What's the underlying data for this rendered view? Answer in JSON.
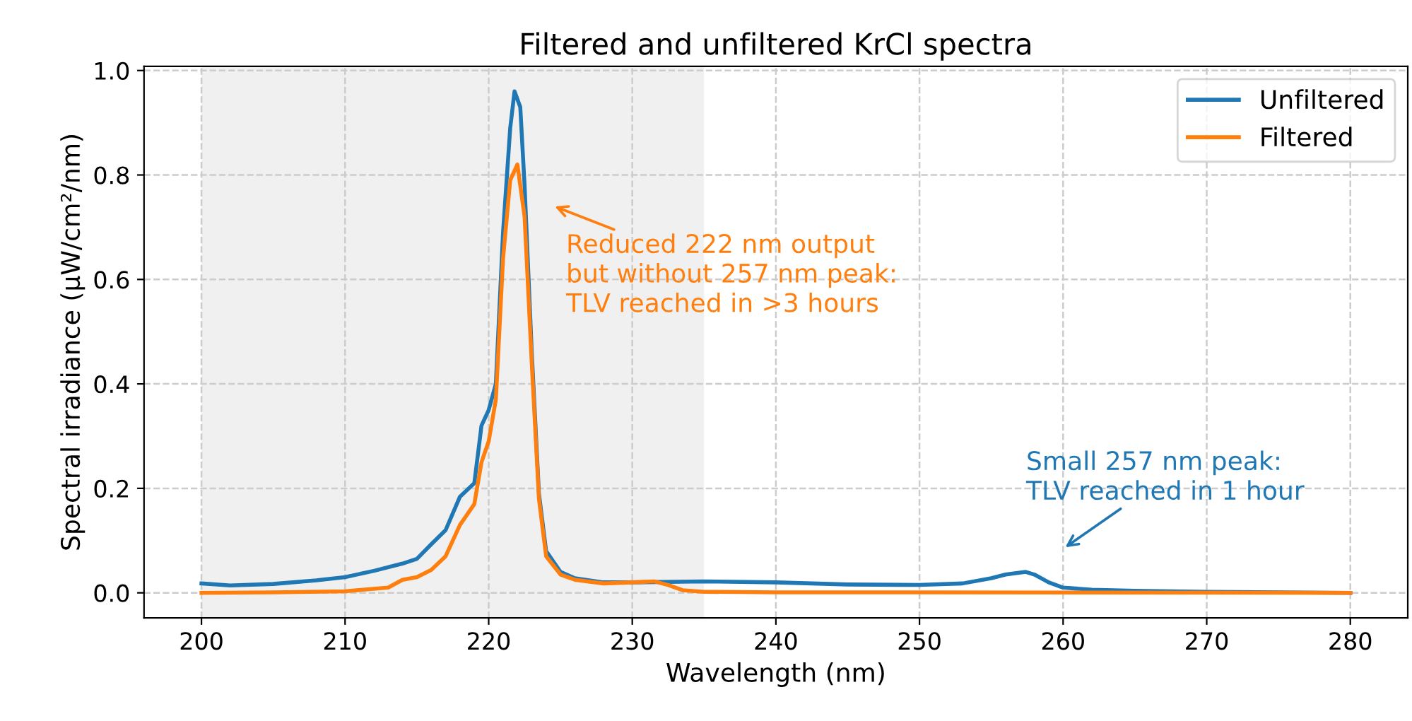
{
  "chart_data": {
    "type": "line",
    "title": "Filtered and unfiltered KrCl spectra",
    "xlabel": "Wavelength (nm)",
    "ylabel": "Spectral irradiance (µW/cm²/nm)",
    "xlim": [
      196,
      284
    ],
    "ylim": [
      -0.048,
      1.008
    ],
    "xticks": [
      200,
      210,
      220,
      230,
      240,
      250,
      260,
      270,
      280
    ],
    "yticks": [
      {
        "value": 0,
        "label": "0.0"
      },
      0.2,
      0.4,
      0.6,
      0.8,
      {
        "value": 1,
        "label": "1.0"
      }
    ],
    "grid": true,
    "legend": "top right",
    "line_style": "solid",
    "marker": "none",
    "bands": [
      {
        "axis": "x",
        "from": 200,
        "to": 235,
        "color": "#f0f0f0"
      }
    ],
    "series": [
      {
        "name": "Unfiltered",
        "color": "#1f77b4",
        "x": [
          200,
          202,
          205,
          208,
          210,
          212,
          214,
          215,
          216,
          217,
          218,
          219,
          219.5,
          220,
          220.5,
          221,
          221.5,
          221.8,
          222.2,
          222.5,
          223,
          223.5,
          224,
          225,
          226,
          228,
          230,
          235,
          240,
          245,
          250,
          253,
          255,
          256,
          257.4,
          258,
          259,
          260,
          262,
          265,
          270,
          280
        ],
        "values": [
          0.018,
          0.014,
          0.017,
          0.024,
          0.03,
          0.042,
          0.056,
          0.065,
          0.093,
          0.12,
          0.184,
          0.21,
          0.32,
          0.35,
          0.4,
          0.69,
          0.89,
          0.96,
          0.93,
          0.78,
          0.46,
          0.19,
          0.08,
          0.04,
          0.028,
          0.02,
          0.02,
          0.022,
          0.02,
          0.016,
          0.015,
          0.018,
          0.028,
          0.035,
          0.04,
          0.035,
          0.02,
          0.01,
          0.006,
          0.004,
          0.002,
          0.0
        ]
      },
      {
        "name": "Filtered",
        "color": "#ff7f0e",
        "x": [
          200,
          205,
          210,
          213,
          214,
          215,
          216,
          217,
          218,
          219,
          219.5,
          220,
          220.5,
          221,
          221.5,
          222,
          222.5,
          223,
          223.5,
          224,
          225,
          226,
          228,
          230,
          231.5,
          232.5,
          233.5,
          235,
          240,
          280
        ],
        "values": [
          0.0,
          0.001,
          0.003,
          0.01,
          0.025,
          0.03,
          0.044,
          0.07,
          0.13,
          0.17,
          0.25,
          0.29,
          0.37,
          0.64,
          0.79,
          0.82,
          0.72,
          0.44,
          0.18,
          0.07,
          0.035,
          0.025,
          0.018,
          0.02,
          0.022,
          0.015,
          0.005,
          0.002,
          0.001,
          0.0
        ]
      }
    ],
    "annotations": [
      "Small 257 nm peak:\nTLV reached in 1 hour",
      "Reduced 222 nm output\nbut without 257 nm peak:\nTLV reached in >3 hours"
    ]
  }
}
